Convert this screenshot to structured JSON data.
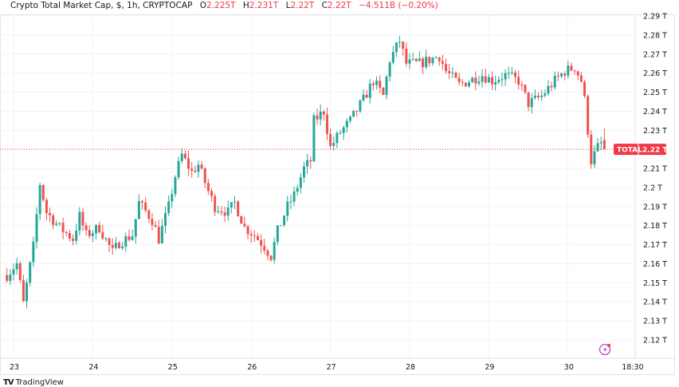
{
  "header": {
    "symbol": "Crypto Total Market Cap, $, 1h, CRYPTOCAP",
    "o_label": "O",
    "o": "2.225T",
    "h_label": "H",
    "h": "2.231T",
    "l_label": "L",
    "l": "2.22T",
    "c_label": "C",
    "c": "2.22T",
    "change": "−4.511B (−0.20%)"
  },
  "price_tag": {
    "name": "TOTAL",
    "value": "2.22 T"
  },
  "logo": {
    "text": "TradingView"
  },
  "colors": {
    "up": "#26a69a",
    "down": "#ef5350",
    "grid": "#f0f3fa",
    "tag": "#f23645",
    "event": "#c13fd6"
  },
  "chart_data": {
    "type": "candlestick",
    "title": "Crypto Total Market Cap, $, 1h, CRYPTOCAP",
    "interval_hours": 1,
    "ylim": [
      2.115,
      2.295
    ],
    "yticks": [
      "2.29 T",
      "2.28 T",
      "2.27 T",
      "2.26 T",
      "2.25 T",
      "2.24 T",
      "2.23 T",
      "2.21 T",
      "2.2 T",
      "2.19 T",
      "2.18 T",
      "2.17 T",
      "2.16 T",
      "2.15 T",
      "2.14 T",
      "2.13 T",
      "2.12 T"
    ],
    "ytick_values": [
      2.29,
      2.28,
      2.27,
      2.26,
      2.25,
      2.24,
      2.23,
      2.21,
      2.2,
      2.19,
      2.18,
      2.17,
      2.16,
      2.15,
      2.14,
      2.13,
      2.12
    ],
    "xticks": [
      "23",
      "24",
      "25",
      "26",
      "27",
      "28",
      "29",
      "30",
      "18:30"
    ],
    "xtick_hours": [
      0,
      24,
      48,
      72,
      96,
      120,
      144,
      168,
      185.5
    ],
    "last_price": 2.22,
    "last_candle": {
      "open": 2.225,
      "high": 2.231,
      "low": 2.22,
      "close": 2.22
    },
    "close_path": [
      [
        -2,
        2.154
      ],
      [
        1,
        2.16
      ],
      [
        3,
        2.139
      ],
      [
        6,
        2.169
      ],
      [
        8,
        2.202
      ],
      [
        10,
        2.187
      ],
      [
        14,
        2.179
      ],
      [
        18,
        2.173
      ],
      [
        20,
        2.185
      ],
      [
        22,
        2.175
      ],
      [
        26,
        2.179
      ],
      [
        30,
        2.166
      ],
      [
        32,
        2.171
      ],
      [
        36,
        2.175
      ],
      [
        38,
        2.192
      ],
      [
        42,
        2.183
      ],
      [
        44,
        2.173
      ],
      [
        47,
        2.19
      ],
      [
        49,
        2.206
      ],
      [
        51,
        2.217
      ],
      [
        54,
        2.208
      ],
      [
        56,
        2.212
      ],
      [
        59,
        2.198
      ],
      [
        61,
        2.19
      ],
      [
        65,
        2.187
      ],
      [
        67,
        2.192
      ],
      [
        70,
        2.179
      ],
      [
        73,
        2.175
      ],
      [
        76,
        2.169
      ],
      [
        78,
        2.164
      ],
      [
        80,
        2.177
      ],
      [
        83,
        2.19
      ],
      [
        85,
        2.196
      ],
      [
        88,
        2.21
      ],
      [
        90,
        2.214
      ],
      [
        91,
        2.235
      ],
      [
        94,
        2.24
      ],
      [
        96,
        2.221
      ],
      [
        99,
        2.229
      ],
      [
        102,
        2.235
      ],
      [
        106,
        2.246
      ],
      [
        109,
        2.256
      ],
      [
        112,
        2.248
      ],
      [
        114,
        2.267
      ],
      [
        117,
        2.277
      ],
      [
        119,
        2.265
      ],
      [
        123,
        2.265
      ],
      [
        126,
        2.267
      ],
      [
        129,
        2.269
      ],
      [
        131,
        2.261
      ],
      [
        135,
        2.254
      ],
      [
        138,
        2.256
      ],
      [
        142,
        2.259
      ],
      [
        145,
        2.256
      ],
      [
        149,
        2.259
      ],
      [
        153,
        2.256
      ],
      [
        156,
        2.244
      ],
      [
        160,
        2.248
      ],
      [
        164,
        2.256
      ],
      [
        167,
        2.261
      ],
      [
        170,
        2.263
      ],
      [
        172,
        2.256
      ],
      [
        173,
        2.246
      ],
      [
        175,
        2.214
      ],
      [
        177,
        2.221
      ],
      [
        179,
        2.225
      ]
    ]
  }
}
